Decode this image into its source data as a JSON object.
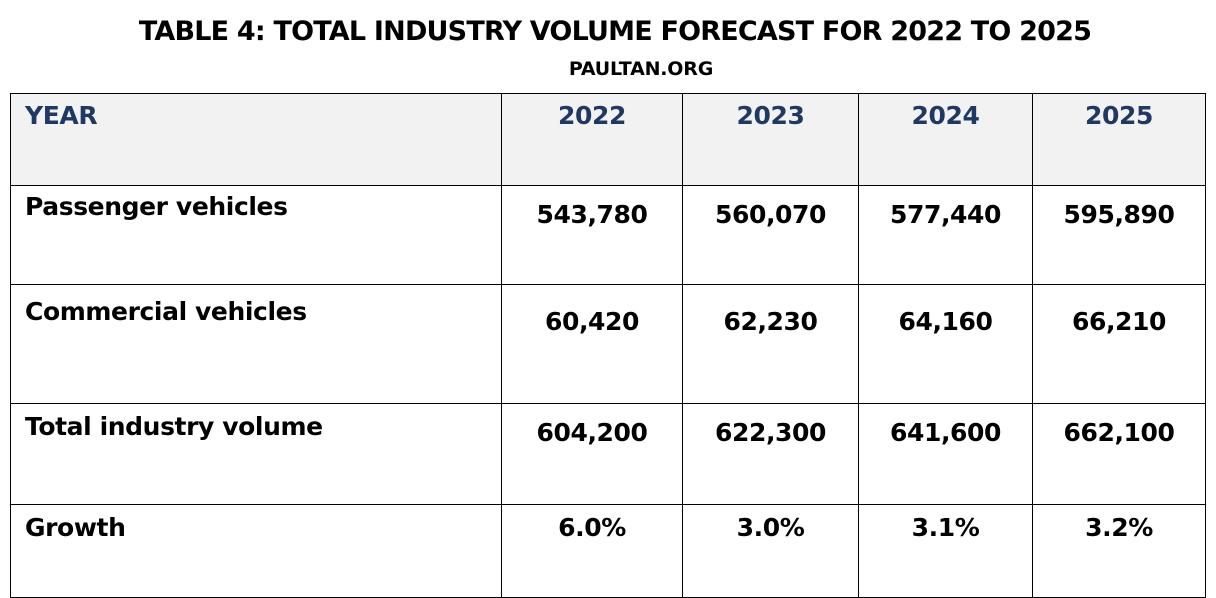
{
  "title": "TABLE 4: TOTAL INDUSTRY VOLUME FORECAST FOR 2022 TO 2025",
  "subtitle": "PAULTAN.ORG",
  "colors": {
    "header_text": "#1f3864",
    "header_background": "#f2f2f2",
    "border": "#000000"
  },
  "table": {
    "header": [
      "YEAR",
      "2022",
      "2023",
      "2024",
      "2025"
    ],
    "rows": [
      {
        "label": "Passenger vehicles",
        "values": [
          "543,780",
          "560,070",
          "577,440",
          "595,890"
        ]
      },
      {
        "label": "Commercial vehicles",
        "values": [
          "60,420",
          "62,230",
          "64,160",
          "66,210"
        ]
      },
      {
        "label": "Total industry volume",
        "values": [
          "604,200",
          "622,300",
          "641,600",
          "662,100"
        ]
      },
      {
        "label": "Growth",
        "values": [
          "6.0%",
          "3.0%",
          "3.1%",
          "3.2%"
        ]
      }
    ]
  },
  "chart_data": {
    "type": "table",
    "title": "TABLE 4: TOTAL INDUSTRY VOLUME FORECAST FOR 2022 TO 2025",
    "subtitle": "PAULTAN.ORG",
    "columns": [
      "YEAR",
      "2022",
      "2023",
      "2024",
      "2025"
    ],
    "rows": [
      [
        "Passenger vehicles",
        543780,
        560070,
        577440,
        595890
      ],
      [
        "Commercial vehicles",
        60420,
        62230,
        64160,
        66210
      ],
      [
        "Total industry volume",
        604200,
        622300,
        641600,
        662100
      ],
      [
        "Growth",
        "6.0%",
        "3.0%",
        "3.1%",
        "3.2%"
      ]
    ]
  }
}
